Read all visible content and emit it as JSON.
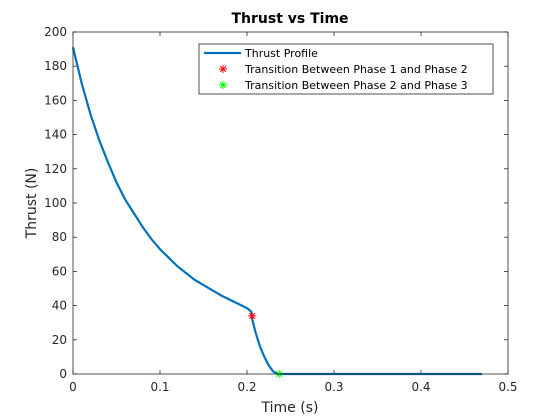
{
  "chart_data": {
    "type": "line",
    "title": "Thrust vs Time",
    "xlabel": "Time (s)",
    "ylabel": "Thrust (N)",
    "xlim": [
      0,
      0.5
    ],
    "ylim": [
      0,
      200
    ],
    "xticks": [
      "0",
      "0.1",
      "0.2",
      "0.3",
      "0.4",
      "0.5"
    ],
    "yticks": [
      "0",
      "20",
      "40",
      "60",
      "80",
      "100",
      "120",
      "140",
      "160",
      "180",
      "200"
    ],
    "grid": false,
    "legend_position": "top-right",
    "series": [
      {
        "name": "Thrust Profile",
        "type": "line",
        "color": "#0072BD",
        "x": [
          0,
          0.01,
          0.02,
          0.03,
          0.04,
          0.05,
          0.06,
          0.07,
          0.08,
          0.09,
          0.1,
          0.11,
          0.12,
          0.13,
          0.14,
          0.15,
          0.16,
          0.17,
          0.18,
          0.19,
          0.2,
          0.205,
          0.206,
          0.21,
          0.215,
          0.22,
          0.225,
          0.23,
          0.235,
          0.24,
          0.3,
          0.4,
          0.47
        ],
        "y": [
          191,
          170,
          152,
          137,
          124,
          112,
          102,
          94,
          86,
          79,
          73,
          68,
          63,
          59,
          55,
          52,
          49,
          46,
          43.5,
          41,
          38.5,
          36.5,
          32,
          24,
          16,
          10,
          5,
          1.5,
          0,
          0,
          0,
          0,
          0
        ]
      },
      {
        "name": "Transition Between Phase 1 and Phase 2",
        "type": "scatter",
        "marker": "asterisk",
        "color": "#ff0000",
        "x": [
          0.206
        ],
        "y": [
          34
        ]
      },
      {
        "name": "Transition Between Phase 2 and Phase 3",
        "type": "scatter",
        "marker": "asterisk",
        "color": "#00ff00",
        "x": [
          0.237
        ],
        "y": [
          0
        ]
      }
    ]
  }
}
